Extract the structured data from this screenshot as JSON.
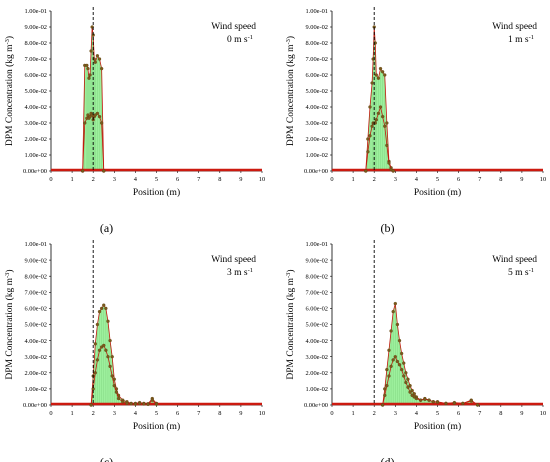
{
  "colors": {
    "fill": "#92ee92",
    "point": "#7a5a1c",
    "line": "#c11a0e",
    "baseline": "#cc1a10",
    "dashed": "#000000"
  },
  "chart_data": [
    {
      "label": "(a)",
      "type": "area",
      "ylabel": "DPM Concentration (kg m-3)",
      "xlabel": "Position (m)",
      "annotation": [
        "Wind speed",
        "0 m s-1"
      ],
      "xlim": [
        0,
        10
      ],
      "ylim": [
        0,
        0.1
      ],
      "xticks": [
        "0",
        "1",
        "2",
        "3",
        "4",
        "5",
        "6",
        "7",
        "8",
        "9",
        "10"
      ],
      "yticks": [
        "0.00e+00",
        "1.00e-02",
        "2.00e-02",
        "3.00e-02",
        "4.00e-02",
        "5.00e-02",
        "6.00e-02",
        "7.00e-02",
        "8.00e-02",
        "9.00e-02",
        "1.00e-01"
      ],
      "reference_x": 2,
      "series": [
        {
          "x": [
            1.5,
            1.6,
            1.7,
            1.75,
            1.8,
            1.85,
            1.9,
            1.95,
            2.0,
            2.05,
            2.1,
            2.2,
            2.3,
            2.4,
            2.5
          ],
          "values": [
            0,
            0.066,
            0.066,
            0.064,
            0.058,
            0.06,
            0.075,
            0.09,
            0.085,
            0.07,
            0.068,
            0.072,
            0.07,
            0.064,
            0
          ]
        },
        {
          "x": [
            1.5,
            1.6,
            1.7,
            1.75,
            1.8,
            1.85,
            1.9,
            1.95,
            2.0,
            2.05,
            2.1,
            2.2,
            2.3,
            2.4,
            2.5
          ],
          "values": [
            0,
            0.03,
            0.033,
            0.035,
            0.033,
            0.034,
            0.036,
            0.035,
            0.032,
            0.034,
            0.035,
            0.036,
            0.034,
            0.03,
            0
          ]
        }
      ]
    },
    {
      "label": "(b)",
      "type": "area",
      "ylabel": "DPM Concentration (kg m-3)",
      "xlabel": "Position (m)",
      "annotation": [
        "Wind speed",
        "1 m s-1"
      ],
      "xlim": [
        0,
        10
      ],
      "ylim": [
        0,
        0.1
      ],
      "xticks": [
        "0",
        "1",
        "2",
        "3",
        "4",
        "5",
        "6",
        "7",
        "8",
        "9",
        "10"
      ],
      "yticks": [
        "0.00e+00",
        "1.00e-02",
        "2.00e-02",
        "3.00e-02",
        "4.00e-02",
        "5.00e-02",
        "6.00e-02",
        "7.00e-02",
        "8.00e-02",
        "9.00e-02",
        "1.00e-01"
      ],
      "reference_x": 2,
      "series": [
        {
          "x": [
            1.6,
            1.7,
            1.8,
            1.9,
            1.95,
            2.0,
            2.05,
            2.1,
            2.2,
            2.3,
            2.4,
            2.5,
            2.6,
            2.7,
            2.8,
            2.9
          ],
          "values": [
            0,
            0.02,
            0.04,
            0.055,
            0.07,
            0.09,
            0.08,
            0.06,
            0.058,
            0.064,
            0.062,
            0.06,
            0.03,
            0.006,
            0.002,
            0
          ]
        },
        {
          "x": [
            1.6,
            1.7,
            1.8,
            1.9,
            1.95,
            2.0,
            2.05,
            2.1,
            2.2,
            2.3,
            2.4,
            2.5,
            2.6,
            2.7,
            2.8,
            2.9
          ],
          "values": [
            0,
            0.012,
            0.022,
            0.028,
            0.03,
            0.03,
            0.03,
            0.032,
            0.036,
            0.04,
            0.034,
            0.028,
            0.016,
            0.005,
            0.001,
            0
          ]
        }
      ]
    },
    {
      "label": "(c)",
      "type": "area",
      "ylabel": "DPM Concentration (kg m-3)",
      "xlabel": "Position (m)",
      "annotation": [
        "Wind speed",
        "3 m s-1"
      ],
      "xlim": [
        0,
        10
      ],
      "ylim": [
        0,
        0.1
      ],
      "xticks": [
        "0",
        "1",
        "2",
        "3",
        "4",
        "5",
        "6",
        "7",
        "8",
        "9",
        "10"
      ],
      "yticks": [
        "0.00e+00",
        "1.00e-02",
        "2.00e-02",
        "3.00e-02",
        "4.00e-02",
        "5.00e-02",
        "6.00e-02",
        "7.00e-02",
        "8.00e-02",
        "9.00e-02",
        "1.00e-01"
      ],
      "reference_x": 2,
      "series": [
        {
          "x": [
            1.9,
            2.0,
            2.1,
            2.2,
            2.3,
            2.4,
            2.5,
            2.6,
            2.7,
            2.8,
            2.9,
            3.0,
            3.1,
            3.2,
            3.4,
            3.6,
            3.8,
            4.0,
            4.2,
            4.4,
            4.6,
            4.8,
            5.0
          ],
          "values": [
            0,
            0.018,
            0.038,
            0.05,
            0.058,
            0.06,
            0.062,
            0.06,
            0.052,
            0.04,
            0.03,
            0.016,
            0.01,
            0.006,
            0.003,
            0.002,
            0.001,
            0.001,
            0.0015,
            0.001,
            0.0008,
            0.004,
            0.001
          ]
        },
        {
          "x": [
            1.9,
            2.0,
            2.1,
            2.2,
            2.3,
            2.4,
            2.5,
            2.6,
            2.7,
            2.8,
            2.9,
            3.0,
            3.1,
            3.2,
            3.4,
            3.6,
            3.8,
            4.0,
            4.2,
            4.4,
            4.6,
            4.8,
            5.0
          ],
          "values": [
            0,
            0.01,
            0.02,
            0.028,
            0.034,
            0.036,
            0.037,
            0.034,
            0.03,
            0.024,
            0.018,
            0.012,
            0.008,
            0.004,
            0.002,
            0.001,
            0.0008,
            0.0005,
            0.001,
            0.0006,
            0.0004,
            0.003,
            0.0005
          ]
        }
      ]
    },
    {
      "label": "(d)",
      "type": "area",
      "ylabel": "DPM Concentration (kg m-3)",
      "xlabel": "Position (m)",
      "annotation": [
        "Wind speed",
        "5 m s-1"
      ],
      "xlim": [
        0,
        10
      ],
      "ylim": [
        0,
        0.1
      ],
      "xticks": [
        "0",
        "1",
        "2",
        "3",
        "4",
        "5",
        "6",
        "7",
        "8",
        "9",
        "10"
      ],
      "yticks": [
        "0.00e+00",
        "1.00e-02",
        "2.00e-02",
        "3.00e-02",
        "4.00e-02",
        "5.00e-02",
        "6.00e-02",
        "7.00e-02",
        "8.00e-02",
        "9.00e-02",
        "1.00e-01"
      ],
      "reference_x": 2,
      "series": [
        {
          "x": [
            2.4,
            2.5,
            2.6,
            2.7,
            2.8,
            2.9,
            3.0,
            3.1,
            3.2,
            3.3,
            3.4,
            3.5,
            3.6,
            3.7,
            3.8,
            3.9,
            4.0,
            4.2,
            4.4,
            4.6,
            4.8,
            5.0,
            5.4,
            5.8,
            6.2,
            6.6,
            6.9
          ],
          "values": [
            0,
            0.01,
            0.022,
            0.034,
            0.046,
            0.058,
            0.063,
            0.05,
            0.04,
            0.032,
            0.026,
            0.02,
            0.016,
            0.012,
            0.009,
            0.007,
            0.005,
            0.003,
            0.004,
            0.003,
            0.002,
            0.002,
            0.001,
            0.0015,
            0.001,
            0.003,
            0
          ]
        },
        {
          "x": [
            2.4,
            2.5,
            2.6,
            2.7,
            2.8,
            2.9,
            3.0,
            3.1,
            3.2,
            3.3,
            3.4,
            3.5,
            3.6,
            3.7,
            3.8,
            3.9,
            4.0,
            4.2,
            4.4,
            4.6,
            4.8,
            5.0,
            5.4,
            5.8,
            6.2,
            6.6,
            6.9
          ],
          "values": [
            0,
            0.006,
            0.012,
            0.018,
            0.024,
            0.028,
            0.03,
            0.027,
            0.025,
            0.022,
            0.018,
            0.014,
            0.011,
            0.008,
            0.006,
            0.005,
            0.004,
            0.003,
            0.0035,
            0.003,
            0.002,
            0.0018,
            0.001,
            0.0012,
            0.001,
            0.0025,
            0
          ]
        }
      ]
    }
  ]
}
